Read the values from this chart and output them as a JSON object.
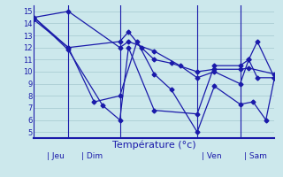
{
  "xlabel": "Température (°c)",
  "background_color": "#cce8ec",
  "grid_color": "#aacdd4",
  "line_color": "#1a1aaa",
  "axis_color": "#1a1aaa",
  "ylim": [
    4.5,
    15.5
  ],
  "yticks": [
    5,
    6,
    7,
    8,
    9,
    10,
    11,
    12,
    13,
    14,
    15
  ],
  "xlim": [
    0,
    28
  ],
  "vert_lines": [
    4,
    10,
    19,
    24
  ],
  "day_tick_labels": [
    "|Jeu",
    "|Dim",
    "|Ven",
    "|Sam"
  ],
  "series": [
    {
      "x": [
        0,
        4,
        10,
        11,
        14,
        17,
        19,
        21,
        24,
        25,
        26,
        28
      ],
      "y": [
        14.5,
        15.0,
        12.0,
        12.5,
        11.7,
        10.5,
        9.5,
        10.0,
        9.0,
        11.0,
        12.5,
        9.5
      ]
    },
    {
      "x": [
        0,
        4,
        7,
        10,
        12,
        14,
        16,
        19,
        21,
        24,
        25.5,
        27,
        28
      ],
      "y": [
        14.3,
        12.0,
        7.5,
        8.0,
        12.5,
        9.8,
        8.5,
        5.0,
        8.8,
        7.3,
        7.5,
        6.0,
        9.5
      ]
    },
    {
      "x": [
        0,
        4,
        8,
        10,
        11,
        14,
        19,
        21,
        24,
        25,
        26,
        28
      ],
      "y": [
        14.5,
        11.8,
        7.2,
        6.0,
        12.0,
        6.8,
        6.5,
        10.5,
        10.5,
        11.0,
        9.5,
        9.5
      ]
    },
    {
      "x": [
        0,
        4,
        10,
        11,
        12.5,
        14,
        16,
        19,
        21,
        24,
        25,
        28
      ],
      "y": [
        14.5,
        12.0,
        12.5,
        13.3,
        12.0,
        11.0,
        10.7,
        10.0,
        10.2,
        10.2,
        10.3,
        9.8
      ]
    }
  ]
}
